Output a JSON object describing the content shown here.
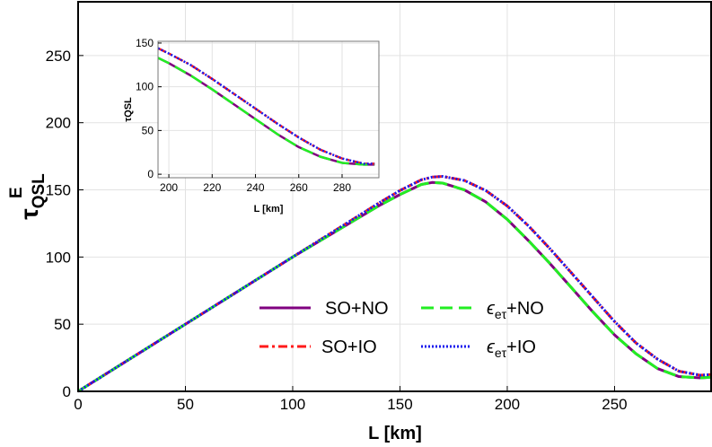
{
  "chart_data": [
    {
      "type": "line",
      "xlabel": "L [km]",
      "ylabel": {
        "base": "τ",
        "sup": "E",
        "sub": "QSL"
      },
      "xlim": [
        0,
        295
      ],
      "ylim": [
        0,
        290
      ],
      "xticks": [
        0,
        50,
        100,
        150,
        200,
        250
      ],
      "yticks": [
        0,
        50,
        100,
        150,
        200,
        250
      ],
      "grid": true,
      "legend_placement": "bottom-center",
      "series": [
        {
          "name": "SO+NO",
          "legend_text": "SO+NO",
          "color": "#800080",
          "style": "solid",
          "x": [
            0,
            20,
            40,
            60,
            80,
            100,
            120,
            140,
            150,
            160,
            165,
            170,
            180,
            190,
            200,
            210,
            220,
            230,
            240,
            250,
            260,
            270,
            280,
            290,
            295
          ],
          "y": [
            0,
            20,
            40,
            60,
            80,
            100,
            119,
            138,
            146.5,
            154,
            155.5,
            155,
            150,
            141,
            128,
            112,
            95,
            77,
            59,
            42,
            28,
            17,
            11,
            10,
            10.5
          ]
        },
        {
          "name": "SO+IO",
          "legend_text": "SO+IO",
          "color": "#ff1a1a",
          "style": "dashdot",
          "x": [
            0,
            20,
            40,
            60,
            80,
            100,
            120,
            140,
            150,
            160,
            165,
            170,
            180,
            190,
            200,
            210,
            220,
            230,
            240,
            250,
            260,
            270,
            280,
            290,
            295
          ],
          "y": [
            0,
            20,
            40,
            60,
            80,
            100,
            120,
            140,
            149.5,
            157.5,
            159.5,
            160,
            157,
            149.5,
            138,
            123,
            106,
            88,
            70,
            52,
            36,
            24,
            15,
            12,
            12.5
          ]
        },
        {
          "name": "εeτ+NO",
          "legend_eps": "ϵ",
          "legend_sub": "eτ",
          "legend_rest": "+NO",
          "color": "#22ee22",
          "style": "dashed",
          "x": [
            0,
            20,
            40,
            60,
            80,
            100,
            120,
            140,
            150,
            160,
            165,
            170,
            180,
            190,
            200,
            210,
            220,
            230,
            240,
            250,
            260,
            270,
            280,
            290,
            295
          ],
          "y": [
            0,
            20,
            40,
            60,
            80,
            100,
            119,
            138,
            146.5,
            154,
            155.5,
            155,
            150,
            141,
            128,
            112,
            95,
            77,
            59,
            42,
            28,
            17,
            11,
            10,
            10.5
          ]
        },
        {
          "name": "εeτ+IO",
          "legend_eps": "ϵ",
          "legend_sub": "eτ",
          "legend_rest": "+IO",
          "color": "#1a1aee",
          "style": "dotted",
          "x": [
            0,
            20,
            40,
            60,
            80,
            100,
            120,
            140,
            150,
            160,
            165,
            170,
            180,
            190,
            200,
            210,
            220,
            230,
            240,
            250,
            260,
            270,
            280,
            290,
            295
          ],
          "y": [
            0,
            20,
            40,
            60,
            80,
            100,
            120,
            140,
            149.5,
            157.5,
            159.5,
            160,
            157,
            149.5,
            138,
            123,
            106,
            88,
            70,
            52,
            36,
            24,
            15,
            12,
            12.5
          ]
        }
      ]
    },
    {
      "type": "line",
      "role": "inset",
      "xlabel": "L [km]",
      "ylabel": "τQSL",
      "xlim": [
        195,
        297
      ],
      "ylim": [
        -4,
        152
      ],
      "xticks": [
        200,
        220,
        240,
        260,
        280
      ],
      "yticks": [
        0,
        50,
        100,
        150
      ],
      "grid": true,
      "series": [
        {
          "name": "SO+NO",
          "color": "#800080",
          "style": "solid",
          "x": [
            195,
            200,
            210,
            220,
            230,
            240,
            250,
            260,
            270,
            280,
            290,
            295
          ],
          "y": [
            133,
            127,
            113,
            97,
            80,
            63,
            46,
            31,
            20,
            13,
            11,
            11
          ]
        },
        {
          "name": "SO+IO",
          "color": "#ff1a1a",
          "style": "dashdot",
          "x": [
            195,
            200,
            210,
            220,
            230,
            240,
            250,
            260,
            270,
            280,
            290,
            295
          ],
          "y": [
            144,
            138,
            125,
            109,
            92,
            75,
            58,
            42,
            28,
            18,
            12,
            12
          ]
        },
        {
          "name": "εeτ+NO",
          "color": "#22ee22",
          "style": "dashed",
          "x": [
            195,
            200,
            210,
            220,
            230,
            240,
            250,
            260,
            270,
            280,
            290,
            295
          ],
          "y": [
            133,
            127,
            113,
            97,
            80,
            63,
            46,
            31,
            20,
            13,
            11,
            11
          ]
        },
        {
          "name": "εeτ+IO",
          "color": "#1a1aee",
          "style": "dotted",
          "x": [
            195,
            200,
            210,
            220,
            230,
            240,
            250,
            260,
            270,
            280,
            290,
            295
          ],
          "y": [
            144,
            138,
            125,
            109,
            92,
            75,
            58,
            42,
            28,
            18,
            12,
            12
          ]
        }
      ]
    }
  ]
}
